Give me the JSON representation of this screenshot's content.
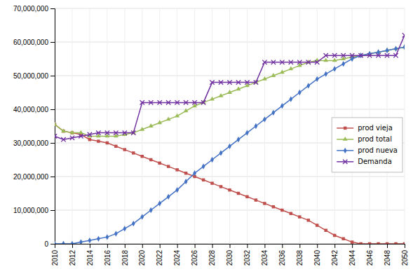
{
  "chart_data": {
    "type": "line",
    "x": [
      2010,
      2011,
      2012,
      2013,
      2014,
      2015,
      2016,
      2017,
      2018,
      2019,
      2020,
      2021,
      2022,
      2023,
      2024,
      2025,
      2026,
      2027,
      2028,
      2029,
      2030,
      2031,
      2032,
      2033,
      2034,
      2035,
      2036,
      2037,
      2038,
      2039,
      2040,
      2041,
      2042,
      2043,
      2044,
      2045,
      2046,
      2047,
      2048,
      2049,
      2050
    ],
    "series": [
      {
        "name": "prod vieja",
        "color": "#c0504d",
        "marker": "square",
        "values": [
          35500000,
          33500000,
          33000000,
          32500000,
          31000000,
          30500000,
          30000000,
          29000000,
          28000000,
          27000000,
          26000000,
          25000000,
          24000000,
          23000000,
          22000000,
          21000000,
          20000000,
          19000000,
          18000000,
          17000000,
          16000000,
          15000000,
          14000000,
          13000000,
          12000000,
          11000000,
          10000000,
          9000000,
          8000000,
          7000000,
          5500000,
          4000000,
          2500000,
          1500000,
          500000,
          0,
          0,
          0,
          0,
          0,
          0
        ]
      },
      {
        "name": "prod total",
        "color": "#9bbb59",
        "marker": "triangle",
        "values": [
          35500000,
          33500000,
          33000000,
          33000000,
          32000000,
          32000000,
          32000000,
          32000000,
          32500000,
          33000000,
          34000000,
          35000000,
          36000000,
          37000000,
          38000000,
          39500000,
          41000000,
          42000000,
          43000000,
          44000000,
          45000000,
          46000000,
          47000000,
          48000000,
          49000000,
          50000000,
          51000000,
          52000000,
          53000000,
          54000000,
          54500000,
          54500000,
          54500000,
          55000000,
          55500000,
          56000000,
          56500000,
          57000000,
          57500000,
          58000000,
          58500000
        ]
      },
      {
        "name": "prod nueva",
        "color": "#4472c4",
        "marker": "diamond",
        "values": [
          0,
          0,
          0,
          500000,
          1000000,
          1500000,
          2000000,
          3000000,
          4500000,
          6000000,
          8000000,
          10000000,
          12000000,
          14000000,
          16000000,
          18500000,
          21000000,
          23000000,
          25000000,
          27000000,
          29000000,
          31000000,
          33000000,
          35000000,
          37000000,
          39000000,
          41000000,
          43000000,
          45000000,
          47000000,
          49000000,
          50500000,
          52000000,
          53500000,
          55000000,
          56000000,
          56500000,
          57000000,
          57500000,
          58000000,
          58500000
        ]
      },
      {
        "name": "Demanda",
        "color": "#7030a0",
        "marker": "x",
        "values": [
          32000000,
          31000000,
          31500000,
          32000000,
          32500000,
          33000000,
          33000000,
          33000000,
          33000000,
          33000000,
          42000000,
          42000000,
          42000000,
          42000000,
          42000000,
          42000000,
          42000000,
          42000000,
          48000000,
          48000000,
          48000000,
          48000000,
          48000000,
          48000000,
          54000000,
          54000000,
          54000000,
          54000000,
          54000000,
          54000000,
          54000000,
          56000000,
          56000000,
          56000000,
          56000000,
          56000000,
          56000000,
          56000000,
          56000000,
          56000000,
          62000000
        ]
      }
    ],
    "xlim": [
      2010,
      2050
    ],
    "xticks": [
      2010,
      2012,
      2014,
      2016,
      2018,
      2020,
      2022,
      2024,
      2026,
      2028,
      2030,
      2032,
      2034,
      2036,
      2038,
      2040,
      2042,
      2044,
      2046,
      2048,
      2050
    ],
    "ylim": [
      0,
      70000000
    ],
    "yticks": [
      0,
      {
        "value": 10000000,
        "label": "10,000,000"
      },
      {
        "value": 20000000,
        "label": "20,000,000"
      },
      {
        "value": 30000000,
        "label": "30,000,000"
      },
      {
        "value": 40000000,
        "label": "40,000,000"
      },
      {
        "value": 50000000,
        "label": "50,000,000"
      },
      {
        "value": 60000000,
        "label": "60,000,000"
      },
      {
        "value": 70000000,
        "label": "70,000,000"
      }
    ],
    "grid": true,
    "legend": "right"
  }
}
